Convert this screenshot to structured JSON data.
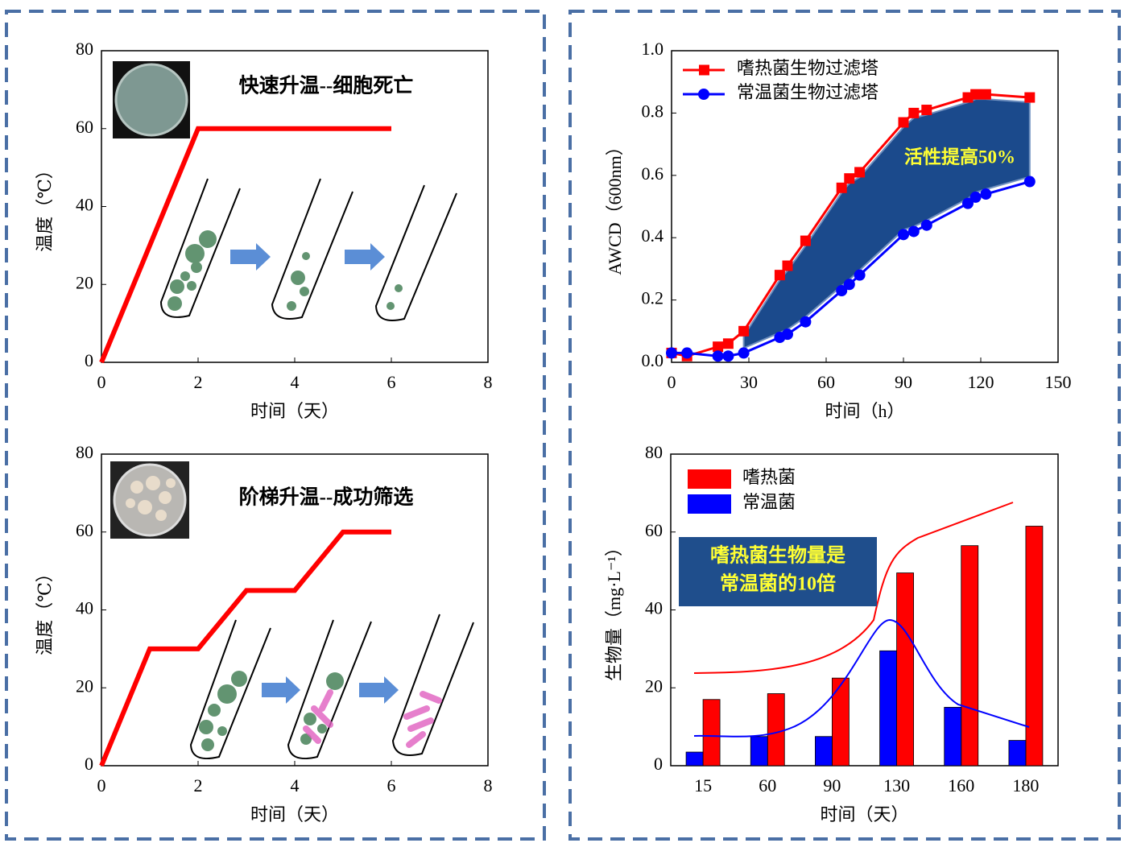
{
  "chart_data": [
    {
      "type": "line",
      "x": [
        0,
        2,
        6
      ],
      "values": [
        0,
        60,
        60
      ],
      "color": "#ff0000",
      "xlim": [
        0,
        8
      ],
      "xticks": [
        0,
        2,
        4,
        6,
        8
      ],
      "ylim": [
        0,
        80
      ],
      "yticks": [
        0,
        20,
        40,
        60,
        80
      ],
      "x_label": "时间（天）",
      "y_label": "温度（℃）",
      "annotation": "快速升温--细胞死亡"
    },
    {
      "type": "line",
      "x": [
        0,
        1,
        2,
        3,
        4,
        5,
        6
      ],
      "values": [
        0,
        30,
        30,
        45,
        45,
        60,
        60
      ],
      "color": "#ff0000",
      "xlim": [
        0,
        8
      ],
      "xticks": [
        0,
        2,
        4,
        6,
        8
      ],
      "ylim": [
        0,
        80
      ],
      "yticks": [
        0,
        20,
        40,
        60,
        80
      ],
      "x_label": "时间（天）",
      "y_label": "温度（℃）",
      "annotation": "阶梯升温--成功筛选"
    },
    {
      "type": "line",
      "x": [
        0,
        6,
        18,
        22,
        28,
        42,
        45,
        52,
        66,
        69,
        73,
        90,
        94,
        99,
        115,
        118,
        122,
        139
      ],
      "series": [
        {
          "name": "嗜热菌生物过滤塔",
          "color": "#ff0000",
          "marker": "square",
          "values": [
            0.03,
            0.02,
            0.05,
            0.06,
            0.1,
            0.28,
            0.31,
            0.39,
            0.56,
            0.59,
            0.61,
            0.77,
            0.8,
            0.81,
            0.85,
            0.86,
            0.86,
            0.85
          ]
        },
        {
          "name": "常温菌生物过滤塔",
          "color": "#0000ff",
          "marker": "circle",
          "values": [
            0.03,
            0.03,
            0.02,
            0.02,
            0.03,
            0.08,
            0.09,
            0.13,
            0.23,
            0.25,
            0.28,
            0.41,
            0.42,
            0.44,
            0.51,
            0.53,
            0.54,
            0.58
          ]
        }
      ],
      "xlim": [
        0,
        150
      ],
      "xticks": [
        0,
        30,
        60,
        90,
        120,
        150
      ],
      "ylim": [
        0,
        1
      ],
      "yticks": [
        {
          "value": 0,
          "label": "0.0"
        },
        {
          "value": 0.2,
          "label": "0.2"
        },
        {
          "value": 0.4,
          "label": "0.4"
        },
        {
          "value": 0.6,
          "label": "0.6"
        },
        {
          "value": 0.8,
          "label": "0.8"
        },
        {
          "value": 1,
          "label": "1.0"
        }
      ],
      "x_label": "时间（h）",
      "y_label": "AWCD（600nm）",
      "annotation": "活性提高50%"
    },
    {
      "type": "bar",
      "categories": [
        "15",
        "60",
        "90",
        "130",
        "160",
        "180"
      ],
      "series": [
        {
          "name": "嗜热菌",
          "color": "#ff0000",
          "values": [
            17,
            18.5,
            22.5,
            49.5,
            56.5,
            61.5
          ]
        },
        {
          "name": "常温菌",
          "color": "#0000ff",
          "values": [
            3.5,
            7.5,
            7.5,
            29.5,
            15,
            6.5
          ]
        }
      ],
      "ylim": [
        0,
        80
      ],
      "yticks": [
        0,
        20,
        40,
        60,
        80
      ],
      "x_label": "时间（天）",
      "y_label": "生物量（mg·L⁻¹）",
      "annotation": [
        "嗜热菌生物量是",
        "常温菌的10倍"
      ]
    }
  ]
}
